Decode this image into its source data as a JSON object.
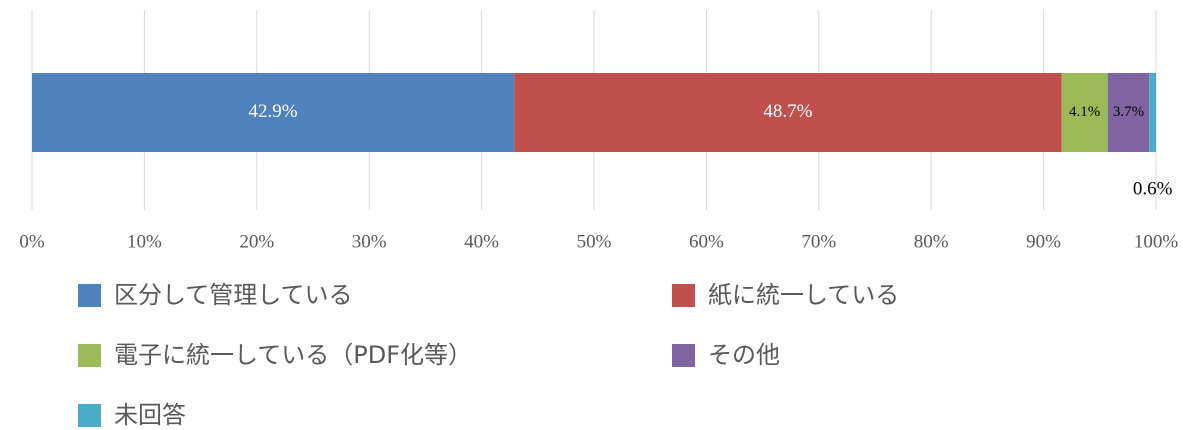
{
  "chart_data": {
    "type": "bar",
    "orientation": "horizontal",
    "stacked": true,
    "xlim": [
      0,
      100
    ],
    "xticks": [
      {
        "value": 0,
        "label": "0%"
      },
      {
        "value": 10,
        "label": "10%"
      },
      {
        "value": 20,
        "label": "20%"
      },
      {
        "value": 30,
        "label": "30%"
      },
      {
        "value": 40,
        "label": "40%"
      },
      {
        "value": 50,
        "label": "50%"
      },
      {
        "value": 60,
        "label": "60%"
      },
      {
        "value": 70,
        "label": "70%"
      },
      {
        "value": 80,
        "label": "80%"
      },
      {
        "value": 90,
        "label": "90%"
      },
      {
        "value": 100,
        "label": "100%"
      }
    ],
    "grid": true,
    "legend": "bottom",
    "series": [
      {
        "name": "区分して管理している",
        "color": "#4f81bd",
        "values": [
          42.9
        ],
        "value_labels": [
          "42.9%"
        ]
      },
      {
        "name": "紙に統一している",
        "color": "#c0504d",
        "values": [
          48.7
        ],
        "value_labels": [
          "48.7%"
        ]
      },
      {
        "name": "電子に統一している（PDF化等）",
        "color": "#9bbb59",
        "values": [
          4.1
        ],
        "value_labels": [
          "4.1%"
        ]
      },
      {
        "name": "その他",
        "color": "#8064a2",
        "values": [
          3.7
        ],
        "value_labels": [
          "3.7%"
        ]
      },
      {
        "name": "未回答",
        "color": "#4bacc6",
        "values": [
          0.6
        ],
        "value_labels": [
          "0.6%"
        ]
      }
    ]
  }
}
